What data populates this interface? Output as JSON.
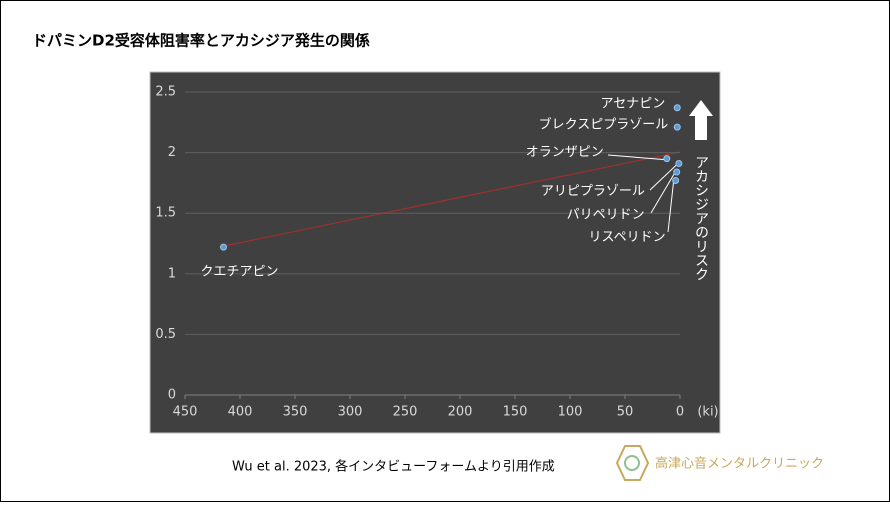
{
  "chart_data": {
    "type": "scatter",
    "title": "ドパミンD2受容体阻害率とアカシジア発生の関係",
    "x": [
      415,
      2.5,
      2.5,
      12,
      1,
      3,
      4
    ],
    "values": [
      1.22,
      2.37,
      2.21,
      1.95,
      1.91,
      1.84,
      1.77
    ],
    "labels": [
      "クエチアピン",
      "アセナピン",
      "ブレクスピプラゾール",
      "オランザピン",
      "アリピプラゾール",
      "パリペリドン",
      "リスペリドン"
    ],
    "color": "#5b9bd5",
    "xlim": [
      450,
      0
    ],
    "xticks": [
      450,
      400,
      350,
      300,
      250,
      200,
      150,
      100,
      50,
      0
    ],
    "ylim": [
      0,
      2.5
    ],
    "yticks": [
      0,
      0.5,
      1,
      1.5,
      2,
      2.5
    ],
    "xlabel": "(ki)",
    "annotation": "アカシジアのリスク",
    "grid": true,
    "source": "Wu et al. 2023,  各インタビューフォームより引用作成",
    "clinic": "高津心音メンタルクリニック"
  }
}
